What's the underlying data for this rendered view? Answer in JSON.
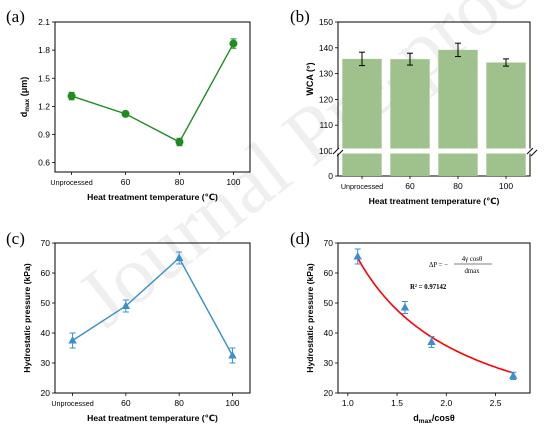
{
  "watermark": "Journal Pre-proof",
  "panels": [
    {
      "label": "(a)"
    },
    {
      "label": "(b)"
    },
    {
      "label": "(c)"
    },
    {
      "label": "(d)"
    }
  ],
  "colors": {
    "a": "#1e8c1e",
    "b": "#9fc18b",
    "c": "#3a8fcc",
    "d_points": "#3a8fcc",
    "d_fit": "#ff0000"
  },
  "chart_data": [
    {
      "id": "a",
      "type": "line",
      "xlabel": "Heat treatment temperature (℃)",
      "ylabel_main": "d",
      "ylabel_sub": "max",
      "ylabel_unit": " (μm)",
      "categories": [
        "Unprocessed",
        "60",
        "80",
        "100"
      ],
      "values": [
        1.31,
        1.12,
        0.82,
        1.87
      ],
      "errors": [
        0.04,
        0.02,
        0.04,
        0.05
      ],
      "ylim": [
        0.5,
        2.1
      ],
      "yticks": [
        "0.6",
        "0.9",
        "1.2",
        "1.5",
        "1.8",
        "2.1"
      ],
      "ytick_values": [
        0.6,
        0.9,
        1.2,
        1.5,
        1.8,
        2.1
      ]
    },
    {
      "id": "b",
      "type": "bar",
      "xlabel": "Heat treatment temperature (℃)",
      "ylabel": "WCA (°)",
      "categories": [
        "Unprocessed",
        "60",
        "80",
        "100"
      ],
      "values": [
        135.7,
        135.6,
        139.2,
        134.3
      ],
      "errors": [
        2.6,
        2.3,
        2.6,
        1.4
      ],
      "break_axis": true,
      "ylim_lower": [
        0,
        100
      ],
      "ylim_upper": [
        100,
        150
      ],
      "yticks_lower": [
        "0",
        "100"
      ],
      "ytick_values_lower": [
        0,
        100
      ],
      "yticks_upper": [
        "110",
        "120",
        "130",
        "140",
        "150"
      ],
      "ytick_values_upper": [
        110,
        120,
        130,
        140,
        150
      ]
    },
    {
      "id": "c",
      "type": "line",
      "xlabel": "Heat treatment temperature (℃)",
      "ylabel": "Hydrostatic pressure (kPa)",
      "categories": [
        "Unprocessed",
        "60",
        "80",
        "100"
      ],
      "values": [
        37.5,
        49,
        65,
        32.5
      ],
      "errors": [
        2.5,
        2,
        2,
        2.5
      ],
      "ylim": [
        20,
        70
      ],
      "yticks": [
        "20",
        "30",
        "40",
        "50",
        "60",
        "70"
      ],
      "ytick_values": [
        20,
        30,
        40,
        50,
        60,
        70
      ]
    },
    {
      "id": "d",
      "type": "scatter",
      "xlabel_main": "d",
      "xlabel_sub": "max",
      "xlabel_rest": "/cosθ",
      "ylabel": "Hydrostatic pressure (kPa)",
      "points": [
        {
          "x": 1.1,
          "y": 65.5,
          "err": 2.5
        },
        {
          "x": 1.58,
          "y": 48.5,
          "err": 2
        },
        {
          "x": 1.85,
          "y": 37,
          "err": 1.8
        },
        {
          "x": 2.68,
          "y": 25.7,
          "err": 1.2
        }
      ],
      "fit": {
        "type": "reciprocal",
        "k": 71.5
      },
      "xlim": [
        0.9,
        2.85
      ],
      "ylim": [
        20,
        70
      ],
      "xticks": [
        "1.0",
        "1.5",
        "2.0",
        "2.5"
      ],
      "xtick_values": [
        1.0,
        1.5,
        2.0,
        2.5
      ],
      "yticks": [
        "20",
        "30",
        "40",
        "50",
        "60",
        "70"
      ],
      "ytick_values": [
        20,
        30,
        40,
        50,
        60,
        70
      ],
      "equation": {
        "lhs": "ΔP = −",
        "num": "4γ cosθ",
        "den": "dmax",
        "r2": "R² = 0.97142"
      }
    }
  ]
}
